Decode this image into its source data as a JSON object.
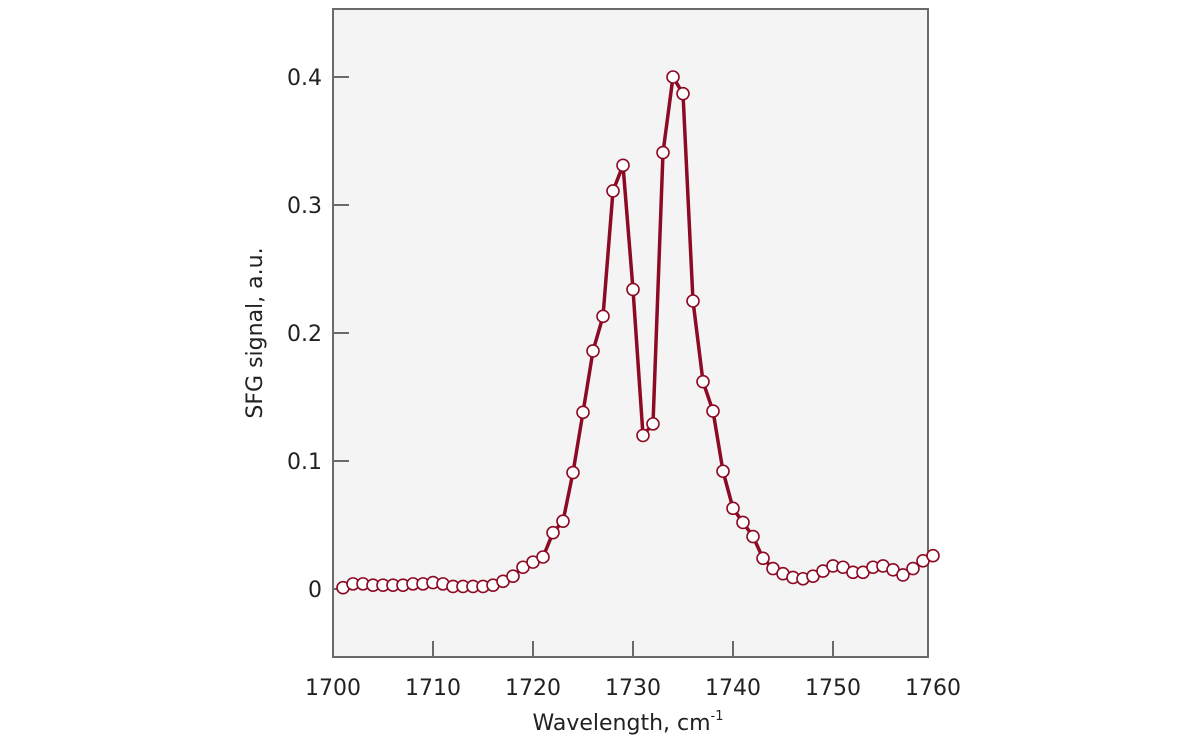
{
  "chart_data": {
    "type": "line",
    "title": "",
    "xlabel": "Wavelength, cm",
    "xlabel_superscript": "-1",
    "ylabel": "SFG signal, a.u.",
    "xlim": [
      1700,
      1760
    ],
    "ylim": [
      -0.055,
      0.45
    ],
    "xticks": [
      1700,
      1710,
      1720,
      1730,
      1740,
      1750,
      1760
    ],
    "xtick_labels": [
      "1700",
      "1710",
      "1720",
      "1730",
      "1740",
      "1750",
      "1760"
    ],
    "yticks": [
      0,
      0.1,
      0.2,
      0.3,
      0.4
    ],
    "ytick_labels": [
      "0",
      "0.1",
      "0.2",
      "0.3",
      "0.4"
    ],
    "grid": false,
    "legend": null,
    "marker": "open-circle",
    "series": [
      {
        "name": "SFG signal",
        "color": "#8c0a24",
        "x": [
          1701,
          1702,
          1703,
          1704,
          1705,
          1706,
          1707,
          1708,
          1709,
          1710,
          1711,
          1712,
          1713,
          1714,
          1715,
          1716,
          1717,
          1718,
          1719,
          1720,
          1721,
          1722,
          1723,
          1724,
          1725,
          1726,
          1727,
          1728,
          1729,
          1730,
          1731,
          1732,
          1733,
          1734,
          1735,
          1736,
          1737,
          1738,
          1739,
          1740,
          1741,
          1742,
          1743,
          1744,
          1745,
          1746,
          1747,
          1748,
          1749,
          1750,
          1751,
          1752,
          1753,
          1754,
          1755,
          1756,
          1757,
          1758,
          1759,
          1760
        ],
        "y": [
          0.001,
          0.004,
          0.004,
          0.003,
          0.003,
          0.003,
          0.003,
          0.004,
          0.004,
          0.005,
          0.004,
          0.002,
          0.002,
          0.002,
          0.002,
          0.003,
          0.006,
          0.01,
          0.017,
          0.021,
          0.025,
          0.044,
          0.053,
          0.091,
          0.138,
          0.186,
          0.213,
          0.311,
          0.331,
          0.234,
          0.12,
          0.129,
          0.341,
          0.4,
          0.387,
          0.225,
          0.162,
          0.139,
          0.092,
          0.063,
          0.052,
          0.041,
          0.024,
          0.016,
          0.012,
          0.009,
          0.008,
          0.01,
          0.014,
          0.018,
          0.017,
          0.013,
          0.013,
          0.017,
          0.018,
          0.015,
          0.011,
          0.016,
          0.022,
          0.026
        ]
      }
    ]
  },
  "layout": {
    "plot_background": "#f4f4f4",
    "axis_color": "#6a6a6a"
  }
}
